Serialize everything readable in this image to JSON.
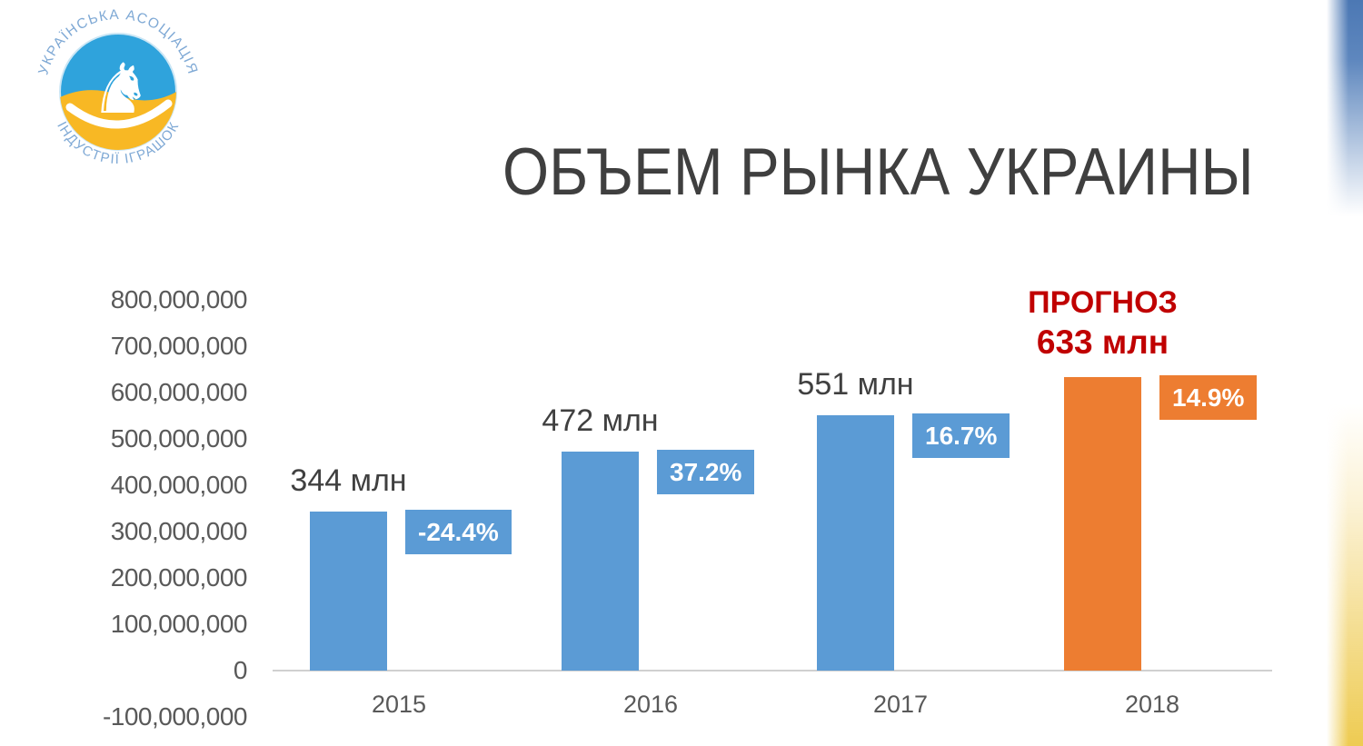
{
  "title": {
    "text": "ОБЪЕМ РЫНКА УКРАИНЫ",
    "color": "#3F3F3F"
  },
  "logo": {
    "arc_text_top": "УКРАЇНСЬКА АСОЦІАЦІЯ",
    "arc_text_bottom": "ІНДУСТРІЇ ІГРАШОК",
    "arc_text_color": "#7FA9D5",
    "circle_blue": "#2FA3DC",
    "circle_yellow": "#F8B824",
    "horse_color": "#FFFFFF"
  },
  "chart_data": {
    "type": "bar",
    "title": "ОБЪЕМ РЫНКА УКРАИНЫ",
    "categories": [
      "2015",
      "2016",
      "2017",
      "2018"
    ],
    "series": [
      {
        "name": "Объем рынка",
        "values": [
          344000000,
          472000000,
          551000000,
          633000000
        ]
      }
    ],
    "bar_value_labels": [
      "344 млн",
      "472 млн",
      "551 млн",
      null
    ],
    "growth_labels": [
      "-24.4%",
      "37.2%",
      "16.7%",
      "14.9%"
    ],
    "bar_colors": [
      "#5B9BD5",
      "#5B9BD5",
      "#5B9BD5",
      "#ED7D31"
    ],
    "growth_box_colors": [
      "#5B9BD5",
      "#5B9BD5",
      "#5B9BD5",
      "#ED7D31"
    ],
    "forecast": {
      "label": "ПРОГНОЗ",
      "value_label": "633 млн",
      "color": "#C00000"
    },
    "ylim": [
      -100000000,
      800000000
    ],
    "ytick_step": 100000000,
    "ytick_labels": [
      "800,000,000",
      "700,000,000",
      "600,000,000",
      "500,000,000",
      "400,000,000",
      "300,000,000",
      "200,000,000",
      "100,000,000",
      "0",
      "-100,000,000"
    ],
    "grid": false,
    "legend": "none",
    "axis_color": "#D0D0D0",
    "tick_label_color": "#595959",
    "value_label_color": "#404040"
  },
  "decor": {
    "stripe_top_color": "#4C78B4",
    "stripe_bottom_color": "#EECB52"
  }
}
